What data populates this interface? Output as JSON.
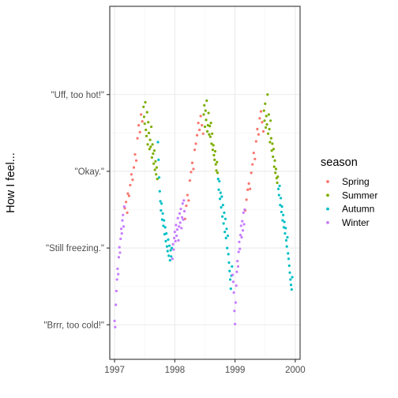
{
  "chart_data": {
    "type": "scatter",
    "title": "",
    "xlabel": "",
    "ylabel": "How I feel...",
    "xlim": [
      1996.92,
      2000.08
    ],
    "ylim": [
      -9.5,
      36.5
    ],
    "x_ticks": [
      {
        "value": 1997,
        "label": "1997"
      },
      {
        "value": 1998,
        "label": "1998"
      },
      {
        "value": 1999,
        "label": "1999"
      },
      {
        "value": 2000,
        "label": "2000"
      }
    ],
    "y_ticks": [
      {
        "value": -5,
        "label": "\"Brrr, too cold!\""
      },
      {
        "value": 5,
        "label": "\"Still freezing.\""
      },
      {
        "value": 15,
        "label": "\"Okay.\""
      },
      {
        "value": 25,
        "label": "\"Uff, too hot!\""
      }
    ],
    "grid": true,
    "legend": {
      "title": "season",
      "position": "right"
    },
    "series": [
      {
        "name": "Spring",
        "color": "#F8766D",
        "points": [
          [
            1997.17,
            10.2
          ],
          [
            1997.19,
            11.0
          ],
          [
            1997.21,
            9.6
          ],
          [
            1997.22,
            12.1
          ],
          [
            1997.24,
            11.8
          ],
          [
            1997.26,
            13.2
          ],
          [
            1997.28,
            14.6
          ],
          [
            1997.3,
            13.9
          ],
          [
            1997.32,
            15.5
          ],
          [
            1997.34,
            17.2
          ],
          [
            1997.36,
            16.4
          ],
          [
            1997.38,
            19.3
          ],
          [
            1997.4,
            21.0
          ],
          [
            1997.42,
            20.1
          ],
          [
            1997.44,
            22.4
          ],
          [
            1997.46,
            21.5
          ],
          [
            1998.17,
            8.8
          ],
          [
            1998.19,
            10.5
          ],
          [
            1998.21,
            11.9
          ],
          [
            1998.23,
            11.2
          ],
          [
            1998.25,
            13.8
          ],
          [
            1998.27,
            14.9
          ],
          [
            1998.29,
            16.1
          ],
          [
            1998.31,
            15.3
          ],
          [
            1998.33,
            17.8
          ],
          [
            1998.35,
            18.6
          ],
          [
            1998.37,
            19.7
          ],
          [
            1998.39,
            21.3
          ],
          [
            1998.41,
            20.4
          ],
          [
            1998.43,
            22.2
          ],
          [
            1998.45,
            21.0
          ],
          [
            1998.47,
            19.9
          ],
          [
            1999.17,
            9.9
          ],
          [
            1999.19,
            11.3
          ],
          [
            1999.21,
            12.6
          ],
          [
            1999.23,
            13.4
          ],
          [
            1999.25,
            12.7
          ],
          [
            1999.27,
            14.8
          ],
          [
            1999.29,
            15.9
          ],
          [
            1999.31,
            17.4
          ],
          [
            1999.33,
            16.6
          ],
          [
            1999.35,
            18.9
          ],
          [
            1999.37,
            20.5
          ],
          [
            1999.39,
            19.8
          ],
          [
            1999.41,
            21.9
          ],
          [
            1999.43,
            22.8
          ],
          [
            1999.45,
            21.4
          ],
          [
            1999.47,
            20.2
          ]
        ]
      },
      {
        "name": "Summer",
        "color": "#7CAE00",
        "points": [
          [
            1997.48,
            23.4
          ],
          [
            1997.49,
            22.1
          ],
          [
            1997.5,
            21.2
          ],
          [
            1997.51,
            24.0
          ],
          [
            1997.52,
            20.4
          ],
          [
            1997.53,
            19.6
          ],
          [
            1997.54,
            22.7
          ],
          [
            1997.55,
            18.5
          ],
          [
            1997.56,
            21.4
          ],
          [
            1997.57,
            20.0
          ],
          [
            1997.58,
            17.9
          ],
          [
            1997.59,
            19.1
          ],
          [
            1997.6,
            18.2
          ],
          [
            1997.61,
            20.8
          ],
          [
            1997.62,
            16.8
          ],
          [
            1997.63,
            18.5
          ],
          [
            1997.64,
            17.3
          ],
          [
            1997.65,
            16.0
          ],
          [
            1997.66,
            17.7
          ],
          [
            1997.67,
            15.2
          ],
          [
            1997.68,
            16.3
          ],
          [
            1997.69,
            14.6
          ],
          [
            1997.7,
            15.5
          ],
          [
            1997.71,
            14.0
          ],
          [
            1998.48,
            22.4
          ],
          [
            1998.49,
            23.6
          ],
          [
            1998.5,
            20.8
          ],
          [
            1998.51,
            22.9
          ],
          [
            1998.52,
            21.7
          ],
          [
            1998.53,
            24.2
          ],
          [
            1998.54,
            20.2
          ],
          [
            1998.55,
            21.0
          ],
          [
            1998.56,
            22.6
          ],
          [
            1998.57,
            19.8
          ],
          [
            1998.58,
            20.9
          ],
          [
            1998.59,
            19.5
          ],
          [
            1998.6,
            21.3
          ],
          [
            1998.61,
            18.6
          ],
          [
            1998.62,
            19.9
          ],
          [
            1998.63,
            17.8
          ],
          [
            1998.64,
            18.4
          ],
          [
            1998.65,
            17.1
          ],
          [
            1998.66,
            16.5
          ],
          [
            1998.67,
            17.6
          ],
          [
            1998.68,
            15.9
          ],
          [
            1998.69,
            15.1
          ],
          [
            1998.7,
            16.2
          ],
          [
            1998.71,
            14.8
          ],
          [
            1999.48,
            22.9
          ],
          [
            1999.49,
            21.6
          ],
          [
            1999.5,
            23.8
          ],
          [
            1999.51,
            20.7
          ],
          [
            1999.52,
            22.2
          ],
          [
            1999.53,
            21.1
          ],
          [
            1999.54,
            25.0
          ],
          [
            1999.55,
            19.9
          ],
          [
            1999.56,
            22.4
          ],
          [
            1999.57,
            20.5
          ],
          [
            1999.58,
            18.8
          ],
          [
            1999.59,
            21.6
          ],
          [
            1999.6,
            19.3
          ],
          [
            1999.61,
            17.7
          ],
          [
            1999.62,
            18.6
          ],
          [
            1999.63,
            16.9
          ],
          [
            1999.64,
            17.9
          ],
          [
            1999.65,
            15.6
          ],
          [
            1999.66,
            16.4
          ],
          [
            1999.67,
            14.8
          ],
          [
            1999.68,
            15.3
          ],
          [
            1999.69,
            14.1
          ],
          [
            1999.7,
            13.5
          ],
          [
            1999.71,
            14.3
          ]
        ]
      },
      {
        "name": "Autumn",
        "color": "#00BFC4",
        "points": [
          [
            1997.72,
            18.8
          ],
          [
            1997.73,
            16.5
          ],
          [
            1997.74,
            14.2
          ],
          [
            1997.75,
            12.4
          ],
          [
            1997.76,
            11.1
          ],
          [
            1997.77,
            9.9
          ],
          [
            1997.78,
            10.8
          ],
          [
            1997.79,
            8.7
          ],
          [
            1997.8,
            9.5
          ],
          [
            1997.81,
            7.9
          ],
          [
            1997.82,
            8.6
          ],
          [
            1997.83,
            6.8
          ],
          [
            1997.84,
            7.7
          ],
          [
            1997.85,
            5.9
          ],
          [
            1997.86,
            6.9
          ],
          [
            1997.87,
            5.2
          ],
          [
            1997.88,
            4.6
          ],
          [
            1997.89,
            6.1
          ],
          [
            1997.9,
            4.0
          ],
          [
            1997.91,
            5.3
          ],
          [
            1997.92,
            3.4
          ],
          [
            1997.93,
            4.7
          ],
          [
            1997.94,
            3.9
          ],
          [
            1997.95,
            5.0
          ],
          [
            1998.72,
            14.0
          ],
          [
            1998.73,
            12.6
          ],
          [
            1998.74,
            13.7
          ],
          [
            1998.75,
            11.4
          ],
          [
            1998.76,
            12.2
          ],
          [
            1998.77,
            10.3
          ],
          [
            1998.78,
            11.7
          ],
          [
            1998.79,
            9.1
          ],
          [
            1998.8,
            10.6
          ],
          [
            1998.81,
            8.2
          ],
          [
            1998.82,
            9.6
          ],
          [
            1998.83,
            7.1
          ],
          [
            1998.84,
            8.8
          ],
          [
            1998.85,
            6.3
          ],
          [
            1998.86,
            7.5
          ],
          [
            1998.87,
            5.0
          ],
          [
            1998.88,
            6.6
          ],
          [
            1998.89,
            4.2
          ],
          [
            1998.9,
            3.1
          ],
          [
            1998.91,
            2.0
          ],
          [
            1998.92,
            0.9
          ],
          [
            1998.93,
            -0.3
          ],
          [
            1998.94,
            1.4
          ],
          [
            1998.95,
            2.6
          ],
          [
            1999.72,
            12.7
          ],
          [
            1999.73,
            11.9
          ],
          [
            1999.74,
            13.1
          ],
          [
            1999.75,
            10.6
          ],
          [
            1999.76,
            11.5
          ],
          [
            1999.77,
            9.7
          ],
          [
            1999.78,
            10.4
          ],
          [
            1999.79,
            8.6
          ],
          [
            1999.8,
            9.3
          ],
          [
            1999.81,
            7.7
          ],
          [
            1999.82,
            8.4
          ],
          [
            1999.83,
            6.9
          ],
          [
            1999.84,
            7.6
          ],
          [
            1999.85,
            6.0
          ],
          [
            1999.86,
            5.2
          ],
          [
            1999.87,
            6.4
          ],
          [
            1999.88,
            4.3
          ],
          [
            1999.89,
            3.6
          ],
          [
            1999.9,
            2.7
          ],
          [
            1999.91,
            1.8
          ],
          [
            1999.92,
            0.9
          ],
          [
            1999.93,
            0.2
          ],
          [
            1999.94,
            -0.4
          ],
          [
            1999.95,
            1.2
          ]
        ]
      },
      {
        "name": "Winter",
        "color": "#C77CFF",
        "points": [
          [
            1997.0,
            -4.5
          ],
          [
            1997.01,
            -5.3
          ],
          [
            1997.02,
            -2.4
          ],
          [
            1997.03,
            -0.6
          ],
          [
            1997.04,
            0.9
          ],
          [
            1997.05,
            2.3
          ],
          [
            1997.06,
            1.6
          ],
          [
            1997.07,
            3.8
          ],
          [
            1997.08,
            5.1
          ],
          [
            1997.09,
            4.4
          ],
          [
            1997.1,
            6.2
          ],
          [
            1997.11,
            7.5
          ],
          [
            1997.12,
            6.9
          ],
          [
            1997.13,
            8.6
          ],
          [
            1997.14,
            9.3
          ],
          [
            1997.15,
            7.8
          ],
          [
            1997.16,
            10.4
          ],
          [
            1997.96,
            3.6
          ],
          [
            1997.97,
            5.5
          ],
          [
            1997.98,
            4.8
          ],
          [
            1997.99,
            6.3
          ],
          [
            1998.0,
            7.1
          ],
          [
            1998.01,
            5.9
          ],
          [
            1998.02,
            8.0
          ],
          [
            1998.03,
            6.6
          ],
          [
            1998.04,
            7.4
          ],
          [
            1998.05,
            8.9
          ],
          [
            1998.06,
            6.0
          ],
          [
            1998.07,
            7.8
          ],
          [
            1998.08,
            9.5
          ],
          [
            1998.09,
            8.3
          ],
          [
            1998.1,
            10.1
          ],
          [
            1998.11,
            7.6
          ],
          [
            1998.12,
            9.0
          ],
          [
            1998.13,
            10.8
          ],
          [
            1998.14,
            8.7
          ],
          [
            1998.15,
            11.2
          ],
          [
            1998.16,
            9.8
          ],
          [
            1998.96,
            1.5
          ],
          [
            1998.97,
            0.6
          ],
          [
            1998.98,
            -0.8
          ],
          [
            1998.99,
            -3.2
          ],
          [
            1999.0,
            -4.9
          ],
          [
            1999.01,
            -2.1
          ],
          [
            1999.02,
            0.1
          ],
          [
            1999.03,
            1.9
          ],
          [
            1999.04,
            3.3
          ],
          [
            1999.05,
            2.6
          ],
          [
            1999.06,
            4.5
          ],
          [
            1999.07,
            5.8
          ],
          [
            1999.08,
            4.9
          ],
          [
            1999.09,
            6.7
          ],
          [
            1999.1,
            7.9
          ],
          [
            1999.11,
            6.4
          ],
          [
            1999.12,
            8.5
          ],
          [
            1999.13,
            7.3
          ],
          [
            1999.14,
            9.6
          ],
          [
            1999.15,
            8.1
          ],
          [
            1999.16,
            10.0
          ]
        ]
      }
    ]
  }
}
